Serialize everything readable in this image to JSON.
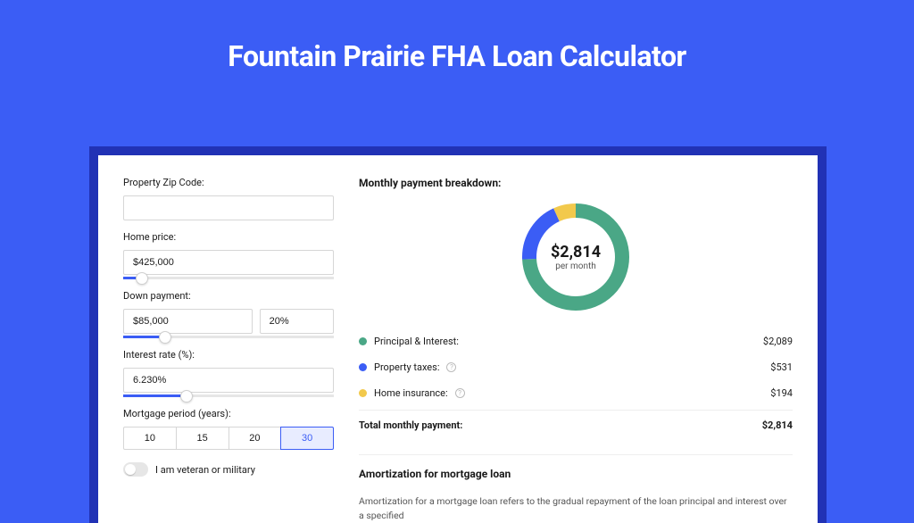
{
  "page": {
    "title": "Fountain Prairie FHA Loan Calculator"
  },
  "colors": {
    "page_bg": "#3b5df5",
    "card_outer": "#2132b5",
    "accent": "#3b5df5",
    "series_pi": "#4aa786",
    "series_tax": "#3b5df5",
    "series_ins": "#f2c94c"
  },
  "form": {
    "zip": {
      "label": "Property Zip Code:",
      "value": ""
    },
    "home_price": {
      "label": "Home price:",
      "value": "$425,000",
      "slider_pct": 9
    },
    "down_payment": {
      "label": "Down payment:",
      "amount": "$85,000",
      "percent": "20%",
      "slider_pct": 20
    },
    "interest_rate": {
      "label": "Interest rate (%):",
      "value": "6.230%",
      "slider_pct": 30
    },
    "period": {
      "label": "Mortgage period (years):",
      "options": [
        "10",
        "15",
        "20",
        "30"
      ],
      "selected": "30"
    },
    "veteran": {
      "label": "I am veteran or military",
      "checked": false
    }
  },
  "breakdown": {
    "heading": "Monthly payment breakdown:",
    "donut": {
      "amount": "$2,814",
      "sub": "per month",
      "segments": [
        {
          "key": "pi",
          "color": "#4aa786",
          "fraction": 0.742
        },
        {
          "key": "tax",
          "color": "#3b5df5",
          "fraction": 0.189
        },
        {
          "key": "ins",
          "color": "#f2c94c",
          "fraction": 0.069
        }
      ],
      "thickness": 16,
      "radius": 60
    },
    "rows": [
      {
        "label": "Principal & Interest:",
        "value": "$2,089",
        "color": "#4aa786",
        "info": false
      },
      {
        "label": "Property taxes:",
        "value": "$531",
        "color": "#3b5df5",
        "info": true
      },
      {
        "label": "Home insurance:",
        "value": "$194",
        "color": "#f2c94c",
        "info": true
      }
    ],
    "total": {
      "label": "Total monthly payment:",
      "value": "$2,814"
    }
  },
  "amortization": {
    "heading": "Amortization for mortgage loan",
    "text": "Amortization for a mortgage loan refers to the gradual repayment of the loan principal and interest over a specified"
  }
}
